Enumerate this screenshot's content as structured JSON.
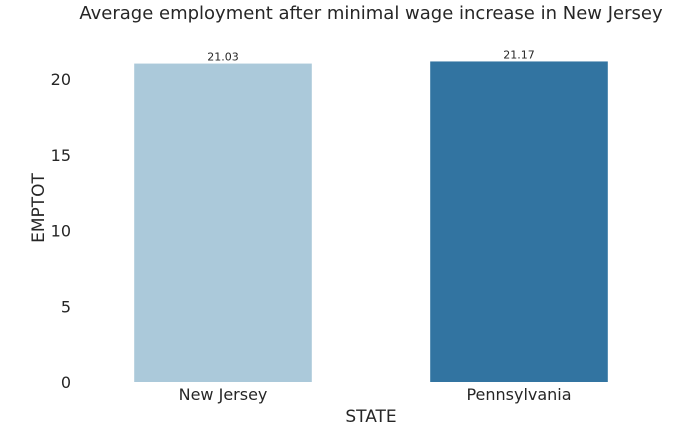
{
  "chart_data": {
    "type": "bar",
    "title": "Average employment after minimal wage increase in New Jersey",
    "xlabel": "STATE",
    "ylabel": "EMPTOT",
    "categories": [
      "New Jersey",
      "Pennsylvania"
    ],
    "values": [
      21.03,
      21.17
    ],
    "value_labels": [
      "21.03",
      "21.17"
    ],
    "yticks": [
      0,
      5,
      10,
      15,
      20
    ],
    "ylim": [
      0,
      21.2
    ],
    "grid": false,
    "colors": [
      "#abc9da",
      "#3274a1"
    ]
  }
}
